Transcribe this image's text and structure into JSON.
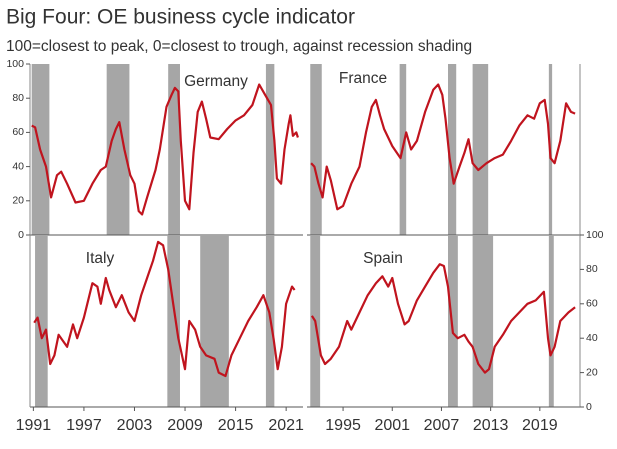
{
  "title": "Big Four: OE business cycle indicator",
  "subtitle": "100=closest to peak, 0=closest to trough, against recession shading",
  "chart_data": [
    {
      "type": "line",
      "title": "Germany",
      "color": "#c0141e",
      "shade_color": "#a6a6a6",
      "xlim": [
        1990.6,
        2023
      ],
      "ylim": [
        0,
        100
      ],
      "yticks": [
        0,
        20,
        40,
        60,
        80,
        100
      ],
      "recessions": [
        [
          1990.8,
          1992.9
        ],
        [
          1999.7,
          2002.4
        ],
        [
          2007.0,
          2008.4
        ],
        [
          2018.6,
          2019.6
        ]
      ],
      "x": [
        1990.8,
        1991.2,
        1991.8,
        1992.5,
        1993.1,
        1993.8,
        1994.3,
        1995,
        1996,
        1997,
        1998,
        1999,
        1999.6,
        2000.3,
        2000.8,
        2001.2,
        2001.8,
        2002.5,
        2003,
        2003.5,
        2003.9,
        2004.5,
        2005.5,
        2006,
        2006.8,
        2007.4,
        2007.8,
        2008.2,
        2008.5,
        2009,
        2009.5,
        2010,
        2010.5,
        2011,
        2011.5,
        2012,
        2013,
        2014,
        2015,
        2016,
        2017,
        2017.8,
        2018.5,
        2019.2,
        2019.6,
        2019.9,
        2020.4,
        2020.8,
        2021.3,
        2021.5,
        2021.8,
        2022.2,
        2022.4
      ],
      "values": [
        64,
        63,
        50,
        40,
        22,
        35,
        37,
        30,
        19,
        20,
        30,
        38,
        40,
        55,
        62,
        66,
        50,
        35,
        30,
        14,
        12,
        22,
        38,
        50,
        75,
        82,
        86,
        84,
        55,
        20,
        15,
        48,
        72,
        78,
        68,
        57,
        56,
        62,
        67,
        70,
        76,
        88,
        82,
        76,
        55,
        33,
        30,
        50,
        65,
        70,
        58,
        60,
        57
      ]
    },
    {
      "type": "line",
      "title": "France",
      "color": "#c0141e",
      "shade_color": "#a6a6a6",
      "xlim": [
        1990.6,
        2023.9
      ],
      "ylim": [
        0,
        100
      ],
      "recessions": [
        [
          1991.0,
          1992.4
        ],
        [
          2001.9,
          2002.7
        ],
        [
          2007.8,
          2008.8
        ],
        [
          2010.8,
          2012.7
        ],
        [
          2020.1,
          2020.5
        ]
      ],
      "x": [
        1991.1,
        1991.5,
        1992,
        1992.5,
        1993,
        1993.5,
        1994.3,
        1995,
        1996,
        1997,
        1997.8,
        1998.5,
        1999,
        1999.5,
        2000,
        2001,
        2002,
        2002.7,
        2003.3,
        2004,
        2005,
        2006,
        2006.6,
        2007.1,
        2007.5,
        2008,
        2008.5,
        2009.2,
        2009.8,
        2010.3,
        2010.8,
        2011.5,
        2012.5,
        2013.5,
        2014.5,
        2015.5,
        2016.5,
        2017.5,
        2018.3,
        2019,
        2019.6,
        2020,
        2020.3,
        2020.8,
        2021.5,
        2022.2,
        2022.8,
        2023.3
      ],
      "values": [
        42,
        40,
        30,
        22,
        40,
        32,
        15,
        17,
        30,
        40,
        60,
        75,
        79,
        70,
        62,
        52,
        45,
        60,
        50,
        55,
        72,
        85,
        88,
        82,
        68,
        45,
        30,
        40,
        48,
        56,
        42,
        38,
        42,
        45,
        47,
        55,
        64,
        70,
        68,
        77,
        79,
        65,
        45,
        42,
        55,
        77,
        72,
        71
      ]
    },
    {
      "type": "line",
      "title": "Italy",
      "color": "#c0141e",
      "shade_color": "#a6a6a6",
      "xlim": [
        1990.6,
        2023
      ],
      "ylim": [
        0,
        100
      ],
      "xticks": [
        1991,
        1997,
        2003,
        2009,
        2015,
        2021
      ],
      "recessions": [
        [
          1991.2,
          1992.7
        ],
        [
          2006.9,
          2008.4
        ],
        [
          2010.8,
          2014.2
        ],
        [
          2018.6,
          2019.6
        ]
      ],
      "x": [
        1991.1,
        1991.5,
        1992,
        1992.5,
        1993,
        1993.5,
        1994,
        1995,
        1995.7,
        1996.2,
        1997,
        1998,
        1998.6,
        1999,
        1999.6,
        2000,
        2000.8,
        2001.5,
        2002.3,
        2003,
        2003.8,
        2004.5,
        2005.2,
        2005.8,
        2006.4,
        2007,
        2007.6,
        2008.2,
        2009,
        2009.5,
        2010.2,
        2010.8,
        2011.5,
        2012.5,
        2013,
        2013.8,
        2014.5,
        2015.5,
        2016.5,
        2017.5,
        2018.3,
        2019,
        2019.5,
        2020,
        2020.5,
        2021,
        2021.7,
        2022
      ],
      "values": [
        49,
        52,
        40,
        45,
        25,
        30,
        42,
        35,
        48,
        40,
        52,
        72,
        70,
        60,
        75,
        68,
        58,
        65,
        55,
        50,
        65,
        75,
        85,
        96,
        94,
        80,
        60,
        40,
        22,
        50,
        45,
        35,
        30,
        28,
        20,
        18,
        30,
        40,
        50,
        58,
        65,
        55,
        40,
        22,
        35,
        60,
        70,
        68
      ]
    },
    {
      "type": "line",
      "title": "Spain",
      "color": "#c0141e",
      "shade_color": "#a6a6a6",
      "xlim": [
        1990.6,
        2023.9
      ],
      "ylim": [
        0,
        100
      ],
      "yticks": [
        0,
        20,
        40,
        60,
        80,
        100
      ],
      "xticks": [
        1995,
        2001,
        2007,
        2013,
        2019
      ],
      "recessions": [
        [
          1991.0,
          1992.2
        ],
        [
          2007.8,
          2009.0
        ],
        [
          2010.8,
          2013.3
        ],
        [
          2020.1,
          2020.7
        ]
      ],
      "x": [
        1991.2,
        1991.6,
        1992.3,
        1992.8,
        1993.5,
        1994.5,
        1995.5,
        1996,
        1997,
        1998,
        1999,
        1999.8,
        2000.5,
        2001,
        2001.7,
        2002.5,
        2003,
        2004,
        2005,
        2006,
        2006.8,
        2007.3,
        2007.8,
        2008.4,
        2009,
        2009.8,
        2010.3,
        2010.8,
        2011.5,
        2012.3,
        2012.8,
        2013.5,
        2014.5,
        2015.5,
        2016.5,
        2017.5,
        2018.5,
        2019.5,
        2020,
        2020.3,
        2020.8,
        2021.5,
        2022.5,
        2023.3
      ],
      "values": [
        53,
        50,
        30,
        25,
        28,
        35,
        50,
        45,
        55,
        65,
        72,
        76,
        70,
        75,
        60,
        48,
        50,
        62,
        70,
        78,
        83,
        82,
        70,
        43,
        40,
        42,
        38,
        35,
        25,
        20,
        22,
        35,
        42,
        50,
        55,
        60,
        62,
        67,
        40,
        30,
        35,
        50,
        55,
        58
      ]
    }
  ]
}
